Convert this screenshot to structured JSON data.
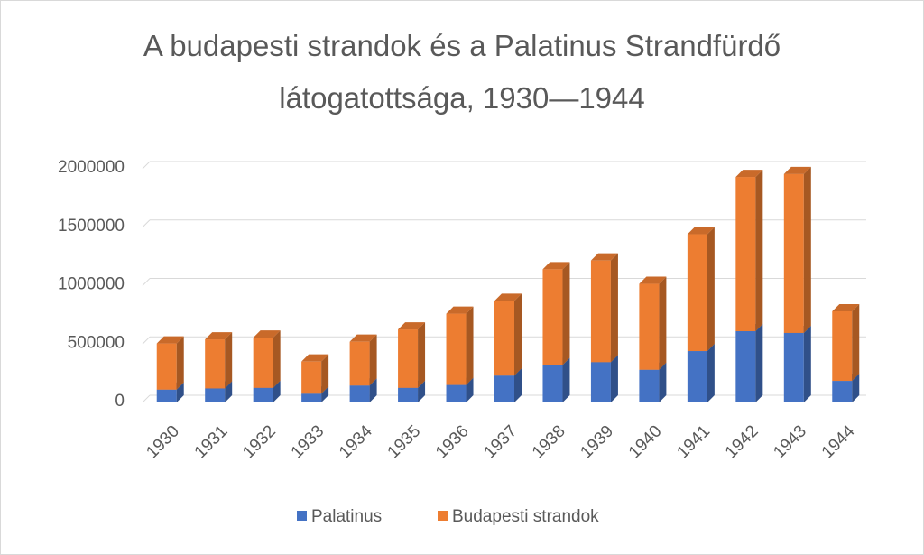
{
  "chart_data": {
    "type": "bar",
    "stacked": true,
    "style": "3d-column",
    "title": "A budapesti strandok és a Palatinus Strandfürdő látogatottsága, 1930–1944",
    "title_lines": [
      "A budapesti strandok és a Palatinus Strandfürdő",
      "látogatottsága, 1930—1944"
    ],
    "categories": [
      "1930",
      "1931",
      "1932",
      "1933",
      "1934",
      "1935",
      "1936",
      "1937",
      "1938",
      "1939",
      "1940",
      "1941",
      "1942",
      "1943",
      "1944"
    ],
    "series": [
      {
        "name": "Palatinus",
        "color": "#4472C4",
        "values": [
          110000,
          120000,
          125000,
          75000,
          145000,
          125000,
          150000,
          230000,
          320000,
          345000,
          280000,
          440000,
          610000,
          595000,
          185000
        ]
      },
      {
        "name": "Budapesti strandok",
        "color": "#ED7D31",
        "values": [
          395000,
          420000,
          430000,
          275000,
          375000,
          500000,
          610000,
          640000,
          820000,
          870000,
          735000,
          1000000,
          1320000,
          1360000,
          595000
        ]
      }
    ],
    "ylim": [
      0,
      2000000
    ],
    "yticks": [
      "0",
      "500000",
      "1000000",
      "1500000",
      "2000000"
    ],
    "ytick_values": [
      0,
      500000,
      1000000,
      1500000,
      2000000
    ],
    "xlabel": "",
    "ylabel": "",
    "grid": true,
    "legend": "bottom"
  }
}
